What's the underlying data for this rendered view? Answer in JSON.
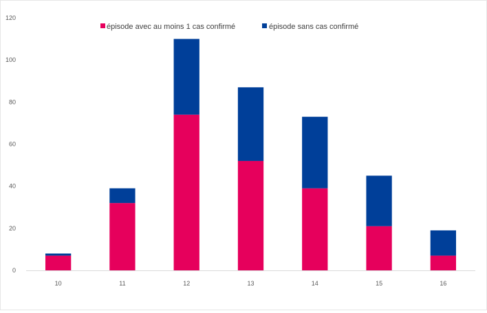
{
  "chart_data": {
    "type": "bar",
    "stacked": true,
    "categories": [
      "10",
      "11",
      "12",
      "13",
      "14",
      "15",
      "16"
    ],
    "series": [
      {
        "name": "épisode avec au moins 1 cas confirmé",
        "color": "#e6005c",
        "values": [
          7,
          32,
          74,
          52,
          39,
          21,
          7
        ]
      },
      {
        "name": "épisode sans cas confirmé",
        "color": "#003f99",
        "values": [
          1,
          7,
          36,
          35,
          34,
          24,
          12
        ]
      }
    ],
    "ylim": [
      0,
      120
    ],
    "yticks": [
      "0",
      "20",
      "40",
      "60",
      "80",
      "100",
      "120"
    ],
    "grid": false,
    "legend": "top"
  }
}
